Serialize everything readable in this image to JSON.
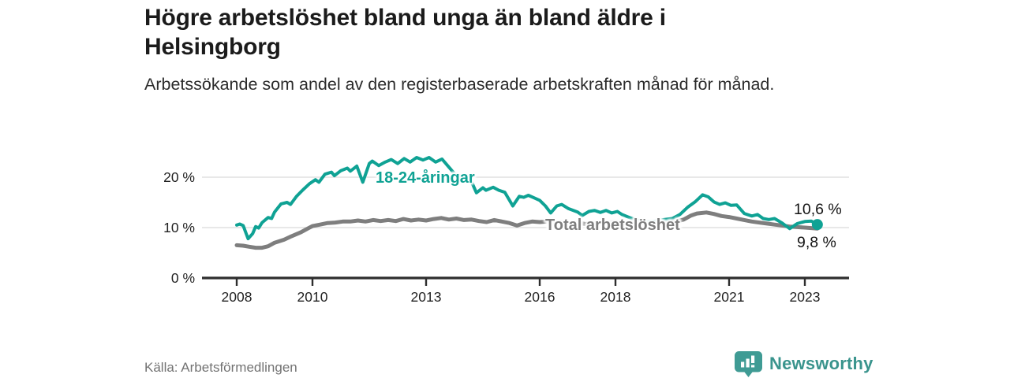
{
  "chart_data": {
    "type": "line",
    "title": "Högre arbetslöshet bland unga än bland äldre i Helsingborg",
    "subtitle": "Arbetssökande som andel av den registerbaserade arbetskraften månad för månad.",
    "source": "Källa: Arbetsförmedlingen",
    "grid": "horizontal",
    "legend_position": "inline-labels",
    "x_ticks": [
      2008,
      2010,
      2013,
      2016,
      2018,
      2021,
      2023
    ],
    "y_ticks": [
      0,
      10,
      20
    ],
    "y_unit": "%",
    "ylim": [
      0,
      25
    ],
    "xlim": [
      2007.1,
      2024.2
    ],
    "axis_color": "#2e2e2e",
    "grid_color": "#dadada",
    "series": [
      {
        "name": "18-24-åringar",
        "color": "#0fa294",
        "end_label": "10,6 %",
        "end_value": 10.6,
        "points": [
          [
            2008.0,
            10.5
          ],
          [
            2008.08,
            10.7
          ],
          [
            2008.17,
            10.4
          ],
          [
            2008.25,
            8.8
          ],
          [
            2008.3,
            7.8
          ],
          [
            2008.42,
            8.8
          ],
          [
            2008.5,
            10.2
          ],
          [
            2008.58,
            9.9
          ],
          [
            2008.67,
            11.0
          ],
          [
            2008.83,
            12.0
          ],
          [
            2008.92,
            11.8
          ],
          [
            2009.0,
            13.1
          ],
          [
            2009.17,
            14.7
          ],
          [
            2009.33,
            15.0
          ],
          [
            2009.42,
            14.6
          ],
          [
            2009.58,
            16.2
          ],
          [
            2009.75,
            17.5
          ],
          [
            2009.92,
            18.7
          ],
          [
            2010.08,
            19.5
          ],
          [
            2010.17,
            19.0
          ],
          [
            2010.33,
            20.6
          ],
          [
            2010.5,
            21.0
          ],
          [
            2010.58,
            20.3
          ],
          [
            2010.75,
            21.3
          ],
          [
            2010.92,
            21.8
          ],
          [
            2011.0,
            21.2
          ],
          [
            2011.17,
            22.2
          ],
          [
            2011.33,
            19.0
          ],
          [
            2011.5,
            22.7
          ],
          [
            2011.58,
            23.2
          ],
          [
            2011.75,
            22.3
          ],
          [
            2011.92,
            23.0
          ],
          [
            2012.08,
            23.5
          ],
          [
            2012.25,
            22.7
          ],
          [
            2012.42,
            23.7
          ],
          [
            2012.58,
            23.0
          ],
          [
            2012.75,
            23.9
          ],
          [
            2012.92,
            23.4
          ],
          [
            2013.08,
            23.9
          ],
          [
            2013.25,
            23.0
          ],
          [
            2013.42,
            23.6
          ],
          [
            2013.58,
            22.2
          ],
          [
            2013.75,
            20.7
          ],
          [
            2013.92,
            20.2
          ],
          [
            2014.0,
            19.8
          ],
          [
            2014.08,
            20.3
          ],
          [
            2014.17,
            19.6
          ],
          [
            2014.33,
            16.9
          ],
          [
            2014.5,
            17.9
          ],
          [
            2014.58,
            17.4
          ],
          [
            2014.77,
            18.0
          ],
          [
            2014.92,
            17.4
          ],
          [
            2015.08,
            17.0
          ],
          [
            2015.29,
            14.3
          ],
          [
            2015.46,
            16.2
          ],
          [
            2015.58,
            16.0
          ],
          [
            2015.7,
            16.4
          ],
          [
            2015.85,
            15.9
          ],
          [
            2016.0,
            15.4
          ],
          [
            2016.15,
            14.3
          ],
          [
            2016.29,
            12.9
          ],
          [
            2016.45,
            14.3
          ],
          [
            2016.58,
            14.6
          ],
          [
            2016.75,
            13.8
          ],
          [
            2017.0,
            13.1
          ],
          [
            2017.12,
            12.4
          ],
          [
            2017.3,
            13.2
          ],
          [
            2017.45,
            13.4
          ],
          [
            2017.6,
            13.0
          ],
          [
            2017.75,
            13.4
          ],
          [
            2017.9,
            12.9
          ],
          [
            2018.05,
            13.2
          ],
          [
            2018.17,
            12.6
          ],
          [
            2018.4,
            11.9
          ],
          [
            2018.6,
            11.4
          ],
          [
            2018.8,
            11.1
          ],
          [
            2019.0,
            11.2
          ],
          [
            2019.2,
            11.5
          ],
          [
            2019.5,
            11.8
          ],
          [
            2019.7,
            12.6
          ],
          [
            2019.9,
            14.0
          ],
          [
            2020.1,
            15.1
          ],
          [
            2020.3,
            16.5
          ],
          [
            2020.45,
            16.1
          ],
          [
            2020.6,
            15.1
          ],
          [
            2020.75,
            14.6
          ],
          [
            2020.9,
            14.9
          ],
          [
            2021.05,
            14.4
          ],
          [
            2021.2,
            14.5
          ],
          [
            2021.4,
            12.8
          ],
          [
            2021.6,
            12.3
          ],
          [
            2021.75,
            12.6
          ],
          [
            2021.9,
            11.8
          ],
          [
            2022.05,
            11.6
          ],
          [
            2022.2,
            11.8
          ],
          [
            2022.4,
            10.9
          ],
          [
            2022.6,
            9.8
          ],
          [
            2022.8,
            10.8
          ],
          [
            2023.0,
            11.2
          ],
          [
            2023.17,
            11.3
          ],
          [
            2023.33,
            10.6
          ]
        ]
      },
      {
        "name": "Total arbetslöshet",
        "color": "#7e7e7e",
        "end_label": "9,8 %",
        "end_value": 9.8,
        "points": [
          [
            2008.0,
            6.5
          ],
          [
            2008.17,
            6.4
          ],
          [
            2008.33,
            6.2
          ],
          [
            2008.5,
            6.0
          ],
          [
            2008.67,
            6.0
          ],
          [
            2008.83,
            6.3
          ],
          [
            2009.0,
            7.0
          ],
          [
            2009.25,
            7.6
          ],
          [
            2009.45,
            8.3
          ],
          [
            2009.7,
            9.1
          ],
          [
            2009.9,
            9.9
          ],
          [
            2010.0,
            10.3
          ],
          [
            2010.2,
            10.6
          ],
          [
            2010.4,
            10.9
          ],
          [
            2010.6,
            11.0
          ],
          [
            2010.8,
            11.2
          ],
          [
            2011.0,
            11.2
          ],
          [
            2011.2,
            11.4
          ],
          [
            2011.4,
            11.2
          ],
          [
            2011.6,
            11.5
          ],
          [
            2011.8,
            11.3
          ],
          [
            2012.0,
            11.5
          ],
          [
            2012.2,
            11.3
          ],
          [
            2012.4,
            11.7
          ],
          [
            2012.6,
            11.4
          ],
          [
            2012.8,
            11.6
          ],
          [
            2013.0,
            11.4
          ],
          [
            2013.2,
            11.7
          ],
          [
            2013.4,
            11.9
          ],
          [
            2013.6,
            11.6
          ],
          [
            2013.8,
            11.8
          ],
          [
            2014.0,
            11.5
          ],
          [
            2014.2,
            11.6
          ],
          [
            2014.4,
            11.3
          ],
          [
            2014.6,
            11.1
          ],
          [
            2014.8,
            11.5
          ],
          [
            2015.0,
            11.2
          ],
          [
            2015.2,
            10.9
          ],
          [
            2015.4,
            10.4
          ],
          [
            2015.6,
            10.9
          ],
          [
            2015.8,
            11.2
          ],
          [
            2016.0,
            11.1
          ],
          [
            2016.2,
            11.2
          ],
          [
            2016.4,
            10.9
          ],
          [
            2016.6,
            11.1
          ],
          [
            2016.8,
            10.8
          ],
          [
            2017.0,
            11.0
          ],
          [
            2017.2,
            10.7
          ],
          [
            2017.4,
            10.9
          ],
          [
            2017.6,
            10.8
          ],
          [
            2017.8,
            11.0
          ],
          [
            2018.0,
            11.1
          ],
          [
            2018.2,
            10.9
          ],
          [
            2018.4,
            10.8
          ],
          [
            2018.6,
            10.9
          ],
          [
            2018.8,
            10.8
          ],
          [
            2019.0,
            10.9
          ],
          [
            2019.2,
            10.8
          ],
          [
            2019.4,
            11.0
          ],
          [
            2019.6,
            11.2
          ],
          [
            2019.8,
            11.6
          ],
          [
            2020.0,
            12.4
          ],
          [
            2020.15,
            12.8
          ],
          [
            2020.4,
            13.0
          ],
          [
            2020.6,
            12.7
          ],
          [
            2020.8,
            12.3
          ],
          [
            2021.0,
            12.1
          ],
          [
            2021.2,
            11.8
          ],
          [
            2021.4,
            11.5
          ],
          [
            2021.6,
            11.2
          ],
          [
            2021.8,
            11.0
          ],
          [
            2022.0,
            10.8
          ],
          [
            2022.2,
            10.6
          ],
          [
            2022.4,
            10.4
          ],
          [
            2022.6,
            10.2
          ],
          [
            2022.8,
            10.1
          ],
          [
            2023.0,
            10.0
          ],
          [
            2023.17,
            9.9
          ],
          [
            2023.33,
            9.8
          ]
        ]
      }
    ]
  },
  "footer": {
    "brand_name": "Newsworthy",
    "brand_icon": "bar-chart-badge",
    "brand_color": "#3f9b94"
  }
}
